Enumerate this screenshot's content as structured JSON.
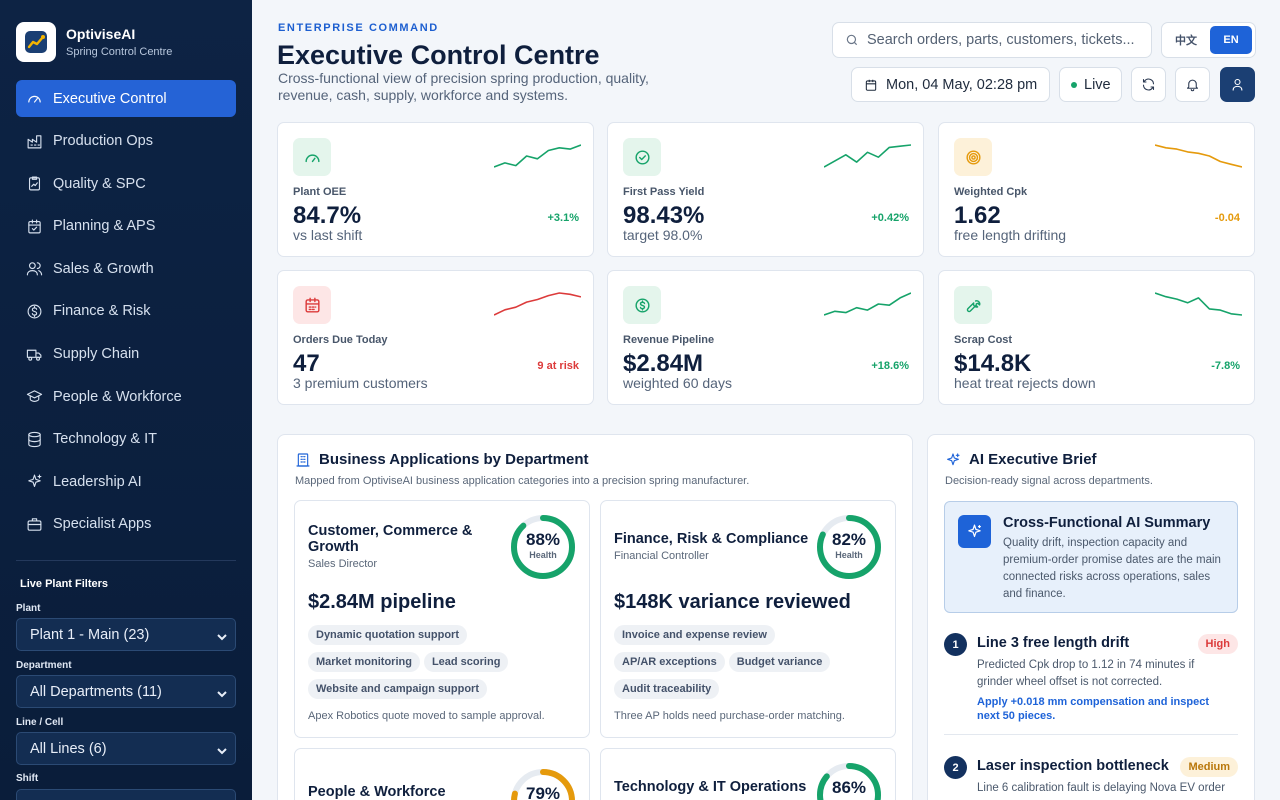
{
  "brand": {
    "name": "OptiviseAI",
    "subtitle": "Spring Control Centre"
  },
  "sidebar": {
    "items": [
      {
        "label": "Executive Control",
        "icon": "gauge-icon",
        "active": true
      },
      {
        "label": "Production Ops",
        "icon": "factory-icon"
      },
      {
        "label": "Quality & SPC",
        "icon": "clipboard-icon"
      },
      {
        "label": "Planning & APS",
        "icon": "calendar-icon"
      },
      {
        "label": "Sales & Growth",
        "icon": "users-icon"
      },
      {
        "label": "Finance & Risk",
        "icon": "dollar-icon"
      },
      {
        "label": "Supply Chain",
        "icon": "truck-icon"
      },
      {
        "label": "People & Workforce",
        "icon": "graduation-cap-icon"
      },
      {
        "label": "Technology & IT",
        "icon": "server-icon"
      },
      {
        "label": "Leadership AI",
        "icon": "sparkle-icon"
      },
      {
        "label": "Specialist Apps",
        "icon": "briefcase-icon"
      }
    ],
    "filters_title": "Live Plant Filters",
    "filters": {
      "plant": {
        "label": "Plant",
        "value": "Plant 1 - Main (23)"
      },
      "department": {
        "label": "Department",
        "value": "All Departments (11)"
      },
      "line": {
        "label": "Line / Cell",
        "value": "All Lines (6)"
      },
      "shift": {
        "label": "Shift"
      }
    }
  },
  "header": {
    "eyebrow": "ENTERPRISE COMMAND",
    "title": "Executive Control Centre",
    "description": "Cross-functional view of precision spring production, quality, revenue, cash, supply, workforce and systems.",
    "search_placeholder": "Search orders, parts, customers, tickets...",
    "lang": [
      "中文",
      "EN"
    ],
    "datetime": "Mon, 04 May, 02:28 pm",
    "live_label": "Live"
  },
  "colors": {
    "accent": "#1e63d8",
    "positive": "#16a36a",
    "warning": "#e59a0c",
    "negative": "#dc3b3b"
  },
  "kpis": [
    {
      "label": "Plant OEE",
      "value": "84.7%",
      "sub": "vs last shift",
      "delta": "+3.1%",
      "tone": "positive",
      "icon": "gauge-icon",
      "trend": [
        40,
        43,
        41,
        48,
        46,
        52,
        54,
        53,
        56
      ]
    },
    {
      "label": "First Pass Yield",
      "value": "98.43%",
      "sub": "target 98.0%",
      "delta": "+0.42%",
      "tone": "positive",
      "icon": "check-circle-icon",
      "trend": [
        40,
        45,
        50,
        44,
        52,
        48,
        56,
        57,
        58
      ]
    },
    {
      "label": "Weighted Cpk",
      "value": "1.62",
      "sub": "free length drifting",
      "delta": "-0.04",
      "tone": "warning",
      "icon": "target-icon",
      "trend": [
        58,
        56,
        55,
        53,
        52,
        50,
        46,
        44,
        42
      ]
    },
    {
      "label": "Orders Due Today",
      "value": "47",
      "sub": "3 premium customers",
      "delta": "9 at risk",
      "tone": "negative",
      "icon": "calendar-icon",
      "trend": [
        40,
        44,
        46,
        50,
        52,
        55,
        57,
        56,
        54
      ]
    },
    {
      "label": "Revenue Pipeline",
      "value": "$2.84M",
      "sub": "weighted 60 days",
      "delta": "+18.6%",
      "tone": "positive",
      "icon": "dollar-icon",
      "trend": [
        40,
        43,
        42,
        46,
        44,
        49,
        48,
        54,
        58
      ]
    },
    {
      "label": "Scrap Cost",
      "value": "$14.8K",
      "sub": "heat treat rejects down",
      "delta": "-7.8%",
      "tone": "positive",
      "icon": "wrench-icon",
      "trend": [
        58,
        55,
        53,
        50,
        54,
        45,
        44,
        41,
        40
      ]
    }
  ],
  "apps_panel": {
    "title": "Business Applications by Department",
    "subtitle": "Mapped from OptiviseAI business application categories into a precision spring manufacturer.",
    "departments": [
      {
        "name": "Customer, Commerce & Growth",
        "role": "Sales Director",
        "health": 0.88,
        "health_label": "88%",
        "health_text": "Health",
        "metric": "$2.84M pipeline",
        "chips": [
          "Dynamic quotation support",
          "Market monitoring",
          "Lead scoring",
          "Website and campaign support"
        ],
        "note": "Apex Robotics quote moved to sample approval.",
        "color": "#16a36a"
      },
      {
        "name": "Finance, Risk & Compliance",
        "role": "Financial Controller",
        "health": 0.82,
        "health_label": "82%",
        "health_text": "Health",
        "metric": "$148K variance reviewed",
        "chips": [
          "Invoice and expense review",
          "AP/AR exceptions",
          "Budget variance",
          "Audit traceability"
        ],
        "note": "Three AP holds need purchase-order matching.",
        "color": "#16a36a"
      },
      {
        "name": "People & Workforce",
        "health": 0.79,
        "health_label": "79%",
        "color": "#e59a0c"
      },
      {
        "name": "Technology & IT Operations",
        "health": 0.86,
        "health_label": "86%",
        "color": "#16a36a"
      }
    ]
  },
  "ai_brief": {
    "title": "AI Executive Brief",
    "subtitle": "Decision-ready signal across departments.",
    "summary_title": "Cross-Functional AI Summary",
    "summary_text": "Quality drift, inspection capacity and premium-order promise dates are the main connected risks across operations, sales and finance.",
    "items": [
      {
        "num": "1",
        "title": "Line 3 free length drift",
        "tag": "High",
        "text": "Predicted Cpk drop to 1.12 in 74 minutes if grinder wheel offset is not corrected.",
        "action": "Apply +0.018 mm compensation and inspect next 50 pieces."
      },
      {
        "num": "2",
        "title": "Laser inspection bottleneck",
        "tag": "Medium",
        "text": "Line 6 calibration fault is delaying Nova EV order"
      }
    ]
  }
}
